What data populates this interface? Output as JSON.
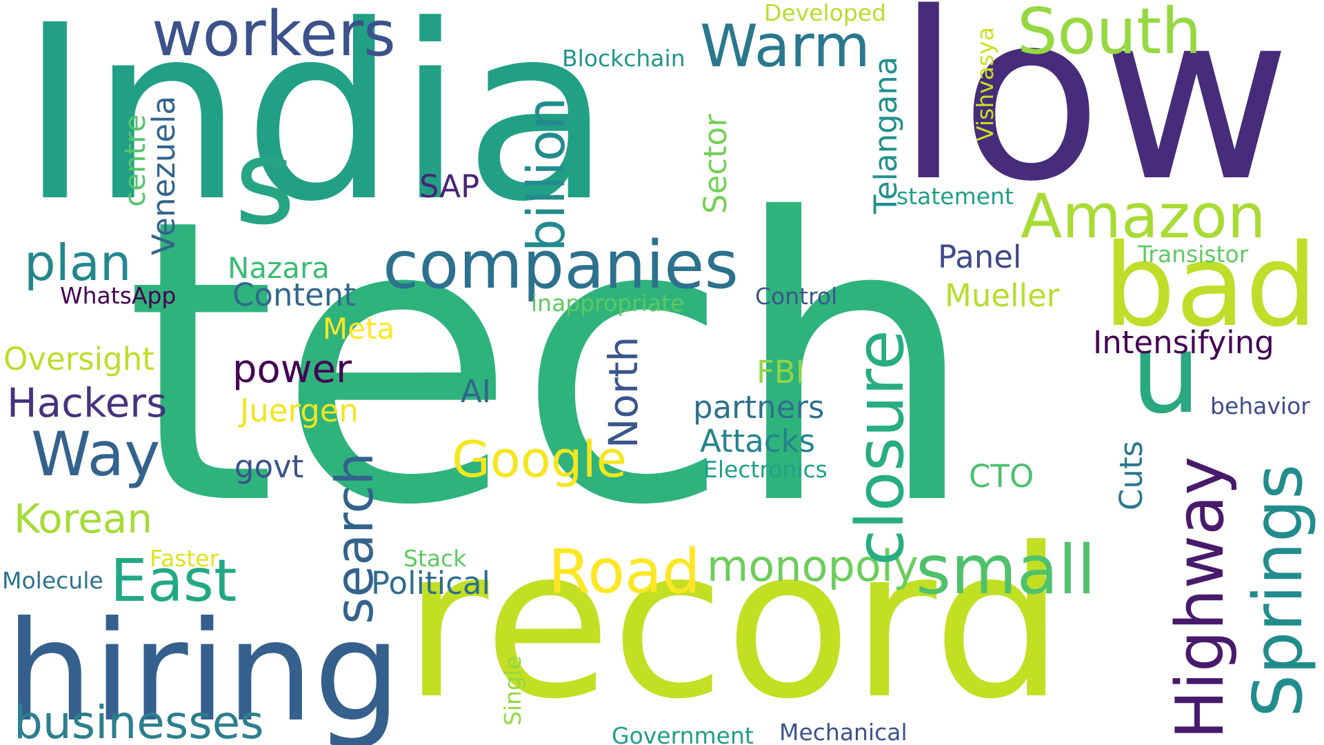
{
  "words": [
    {
      "text": "India",
      "color": "#21a085",
      "vertical": false
    },
    {
      "text": "low",
      "color": "#462c7a",
      "vertical": false
    },
    {
      "text": "tech",
      "color": "#2fb37c",
      "vertical": false
    },
    {
      "text": "record",
      "color": "#c2df23",
      "vertical": false
    },
    {
      "text": "hiring",
      "color": "#355f8d",
      "vertical": false
    },
    {
      "text": "s",
      "color": "#26a483",
      "vertical": false
    },
    {
      "text": "bad",
      "color": "#bede29",
      "vertical": false
    },
    {
      "text": "u",
      "color": "#2aa87f",
      "vertical": false
    },
    {
      "text": "companies",
      "color": "#2c718e",
      "vertical": false
    },
    {
      "text": "workers",
      "color": "#3b528b",
      "vertical": false
    },
    {
      "text": "Warm",
      "color": "#2a788e",
      "vertical": false
    },
    {
      "text": "South",
      "color": "#95d840",
      "vertical": false
    },
    {
      "text": "Amazon",
      "color": "#a8db34",
      "vertical": false
    },
    {
      "text": "small",
      "color": "#4fc16b",
      "vertical": false
    },
    {
      "text": "Road",
      "color": "#fde725",
      "vertical": false
    },
    {
      "text": "East",
      "color": "#22a884",
      "vertical": false
    },
    {
      "text": "businesses",
      "color": "#2c7f8e",
      "vertical": false
    },
    {
      "text": "Way",
      "color": "#33628d",
      "vertical": false
    },
    {
      "text": "plan",
      "color": "#24878e",
      "vertical": false
    },
    {
      "text": "Google",
      "color": "#f5e61f",
      "vertical": false
    },
    {
      "text": "monopoly",
      "color": "#6ccd5a",
      "vertical": false
    },
    {
      "text": "Korean",
      "color": "#a5db36",
      "vertical": false
    },
    {
      "text": "Hackers",
      "color": "#46327e",
      "vertical": false
    },
    {
      "text": "power",
      "color": "#440154",
      "vertical": false
    },
    {
      "text": "Intensifying",
      "color": "#440154",
      "vertical": false
    },
    {
      "text": "Content",
      "color": "#31688e",
      "vertical": false
    },
    {
      "text": "Nazara",
      "color": "#3bbb75",
      "vertical": false
    },
    {
      "text": "Panel",
      "color": "#3e4a89",
      "vertical": false
    },
    {
      "text": "Mueller",
      "color": "#b5de2b",
      "vertical": false
    },
    {
      "text": "Oversight",
      "color": "#bade28",
      "vertical": false
    },
    {
      "text": "partners",
      "color": "#2d708e",
      "vertical": false
    },
    {
      "text": "Attacks",
      "color": "#25838e",
      "vertical": false
    },
    {
      "text": "Political",
      "color": "#2e6e8e",
      "vertical": false
    },
    {
      "text": "Juergen",
      "color": "#f1e51d",
      "vertical": false
    },
    {
      "text": "Meta",
      "color": "#fde725",
      "vertical": false
    },
    {
      "text": "FBI",
      "color": "#90d743",
      "vertical": false
    },
    {
      "text": "CTO",
      "color": "#4ac16d",
      "vertical": false
    },
    {
      "text": "AI",
      "color": "#32658e",
      "vertical": false
    },
    {
      "text": "SAP",
      "color": "#482475",
      "vertical": false
    },
    {
      "text": "govt",
      "color": "#3b528b",
      "vertical": false
    },
    {
      "text": "Transistor",
      "color": "#5ec962",
      "vertical": false
    },
    {
      "text": "Control",
      "color": "#39568c",
      "vertical": false
    },
    {
      "text": "WhatsApp",
      "color": "#440154",
      "vertical": false
    },
    {
      "text": "behavior",
      "color": "#3e4a89",
      "vertical": false
    },
    {
      "text": "Electronics",
      "color": "#1fa088",
      "vertical": false
    },
    {
      "text": "inappropriate",
      "color": "#5ec962",
      "vertical": false
    },
    {
      "text": "Blockchain",
      "color": "#1f968b",
      "vertical": false
    },
    {
      "text": "Developed",
      "color": "#b5de2b",
      "vertical": false
    },
    {
      "text": "statement",
      "color": "#1f9e89",
      "vertical": false
    },
    {
      "text": "Stack",
      "color": "#5ec962",
      "vertical": false
    },
    {
      "text": "Faster",
      "color": "#dfe318",
      "vertical": false
    },
    {
      "text": "Molecule",
      "color": "#2c728e",
      "vertical": false
    },
    {
      "text": "Government",
      "color": "#1f9e89",
      "vertical": false
    },
    {
      "text": "Mechanical",
      "color": "#3b528b",
      "vertical": false
    },
    {
      "text": "billion",
      "color": "#238a8d",
      "vertical": true
    },
    {
      "text": "closure",
      "color": "#27ad81",
      "vertical": true
    },
    {
      "text": "search",
      "color": "#33638d",
      "vertical": true
    },
    {
      "text": "Highway",
      "color": "#481a6c",
      "vertical": true
    },
    {
      "text": "Springs",
      "color": "#228c8d",
      "vertical": true
    },
    {
      "text": "North",
      "color": "#39568c",
      "vertical": true
    },
    {
      "text": "Venezuela",
      "color": "#33638d",
      "vertical": true
    },
    {
      "text": "centre",
      "color": "#54c568",
      "vertical": true
    },
    {
      "text": "Sector",
      "color": "#73d056",
      "vertical": true
    },
    {
      "text": "Telangana",
      "color": "#21908d",
      "vertical": true
    },
    {
      "text": "Vishvasya",
      "color": "#c8e020",
      "vertical": true
    },
    {
      "text": "Cuts",
      "color": "#2a788e",
      "vertical": true
    },
    {
      "text": "Single",
      "color": "#95d840",
      "vertical": true
    }
  ]
}
